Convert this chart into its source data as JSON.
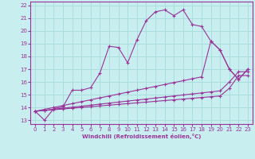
{
  "xlabel": "Windchill (Refroidissement éolien,°C)",
  "background_color": "#c8eef0",
  "line_color": "#993399",
  "grid_color": "#aadddd",
  "xlim": [
    -0.5,
    23.5
  ],
  "ylim": [
    12.7,
    22.3
  ],
  "xticks": [
    0,
    1,
    2,
    3,
    4,
    5,
    6,
    7,
    8,
    9,
    10,
    11,
    12,
    13,
    14,
    15,
    16,
    17,
    18,
    19,
    20,
    21,
    22,
    23
  ],
  "yticks": [
    13,
    14,
    15,
    16,
    17,
    18,
    19,
    20,
    21,
    22
  ],
  "series": [
    {
      "x": [
        0,
        1,
        2,
        3,
        4,
        5,
        6,
        7,
        8,
        9,
        10,
        11,
        12,
        13,
        14,
        15,
        16,
        17,
        18,
        19,
        20,
        21,
        22,
        23
      ],
      "y": [
        13.7,
        13.0,
        13.9,
        14.05,
        15.35,
        15.35,
        15.55,
        16.7,
        18.8,
        18.7,
        17.5,
        19.3,
        20.8,
        21.5,
        21.65,
        21.2,
        21.65,
        20.5,
        20.35,
        19.2,
        18.5,
        17.0,
        16.2,
        17.0
      ]
    },
    {
      "x": [
        0,
        1,
        2,
        3,
        4,
        5,
        6,
        7,
        8,
        9,
        10,
        11,
        12,
        13,
        14,
        15,
        16,
        17,
        18,
        19,
        20,
        21,
        22,
        23
      ],
      "y": [
        13.7,
        13.85,
        14.0,
        14.15,
        14.3,
        14.45,
        14.6,
        14.75,
        14.9,
        15.05,
        15.2,
        15.35,
        15.5,
        15.65,
        15.8,
        15.95,
        16.1,
        16.25,
        16.4,
        19.2,
        18.5,
        17.0,
        16.2,
        17.0
      ]
    },
    {
      "x": [
        0,
        1,
        2,
        3,
        4,
        5,
        6,
        7,
        8,
        9,
        10,
        11,
        12,
        13,
        14,
        15,
        16,
        17,
        18,
        19,
        20,
        21,
        22,
        23
      ],
      "y": [
        13.7,
        13.78,
        13.86,
        13.94,
        14.02,
        14.1,
        14.18,
        14.26,
        14.34,
        14.42,
        14.5,
        14.58,
        14.66,
        14.74,
        14.82,
        14.9,
        14.98,
        15.06,
        15.14,
        15.22,
        15.3,
        16.0,
        16.8,
        16.8
      ]
    },
    {
      "x": [
        0,
        1,
        2,
        3,
        4,
        5,
        6,
        7,
        8,
        9,
        10,
        11,
        12,
        13,
        14,
        15,
        16,
        17,
        18,
        19,
        20,
        21,
        22,
        23
      ],
      "y": [
        13.7,
        13.76,
        13.82,
        13.88,
        13.94,
        14.0,
        14.06,
        14.12,
        14.18,
        14.24,
        14.3,
        14.36,
        14.42,
        14.48,
        14.54,
        14.6,
        14.66,
        14.72,
        14.78,
        14.84,
        14.9,
        15.5,
        16.5,
        16.5
      ]
    }
  ]
}
